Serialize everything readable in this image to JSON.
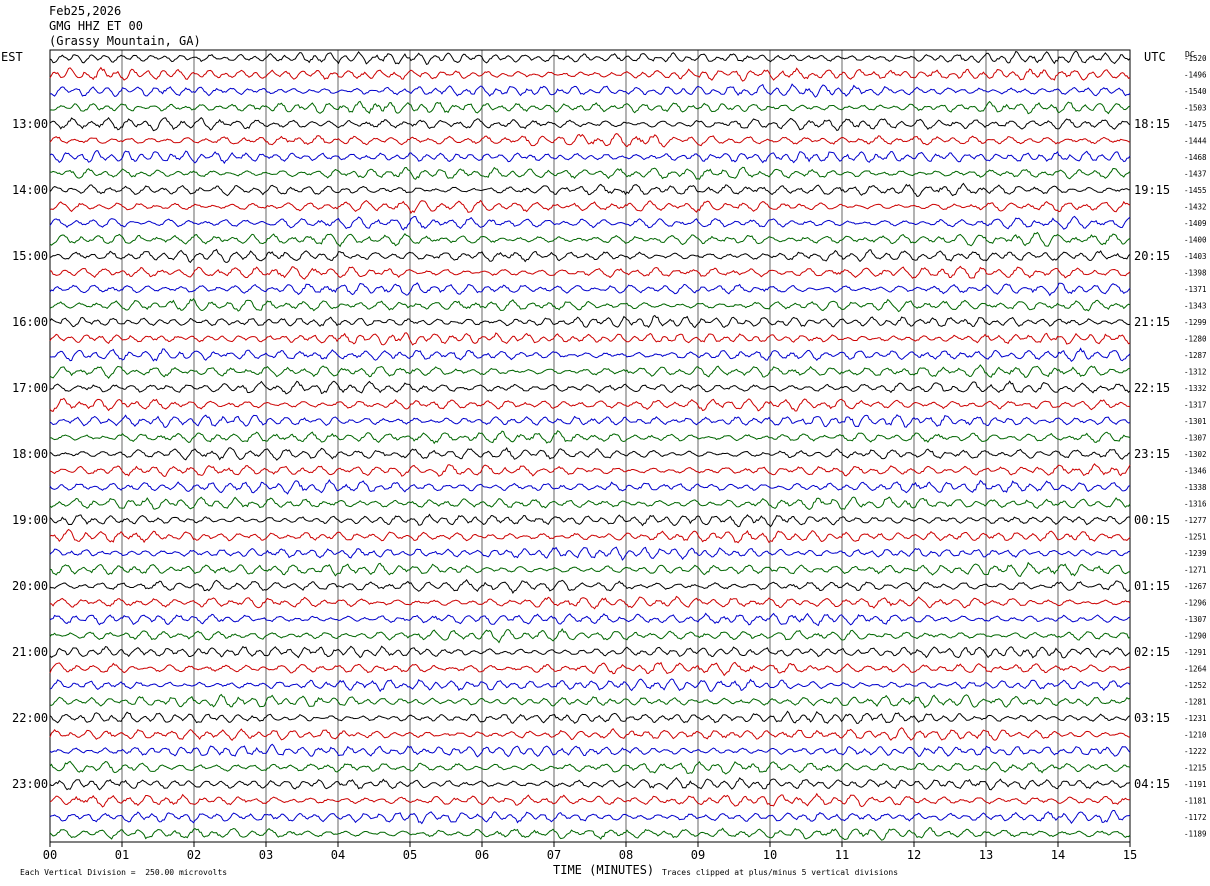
{
  "header": {
    "date": "Feb25,2026",
    "station": "GMG HHZ ET 00",
    "location": "(Grassy Mountain, GA)"
  },
  "labels": {
    "left_tz": "EST",
    "right_tz": "UTC",
    "dc": "DC",
    "xlabel": "TIME (MINUTES)",
    "scale_note": "Each Vertical Division =  250.00 microvolts",
    "clip_note": "Traces clipped at plus/minus 5 vertical divisions"
  },
  "chart_data": {
    "type": "line",
    "title": "GMG HHZ ET 00 (Grassy Mountain, GA)",
    "xlabel": "TIME (MINUTES)",
    "xlim": [
      0,
      15
    ],
    "x_ticks": [
      "00",
      "01",
      "02",
      "03",
      "04",
      "05",
      "06",
      "07",
      "08",
      "09",
      "10",
      "11",
      "12",
      "13",
      "14",
      "15"
    ],
    "left_hour_labels": [
      "13:00",
      "14:00",
      "15:00",
      "16:00",
      "17:00",
      "18:00",
      "19:00",
      "20:00",
      "21:00",
      "22:00",
      "23:00"
    ],
    "right_hour_labels": [
      "18:15",
      "19:15",
      "20:15",
      "21:15",
      "22:15",
      "23:15",
      "00:15",
      "01:15",
      "02:15",
      "03:15",
      "04:15"
    ],
    "trace_colors": [
      "#000000",
      "#cc0000",
      "#0000cc",
      "#006600"
    ],
    "dc_offsets": [
      -1520,
      -1496,
      -1540,
      -1503,
      -1475,
      -1444,
      -1468,
      -1437,
      -1455,
      -1432,
      -1409,
      -1400,
      -1403,
      -1398,
      -1371,
      -1343,
      -1299,
      -1280,
      -1287,
      -1312,
      -1332,
      -1317,
      -1301,
      -1307,
      -1302,
      -1346,
      -1338,
      -1316,
      -1277,
      -1251,
      -1239,
      -1271,
      -1267,
      -1296,
      -1307,
      -1290,
      -1291,
      -1264,
      -1252,
      -1281,
      -1231,
      -1210,
      -1222,
      -1215,
      -1191,
      -1181,
      -1172,
      -1189
    ]
  }
}
